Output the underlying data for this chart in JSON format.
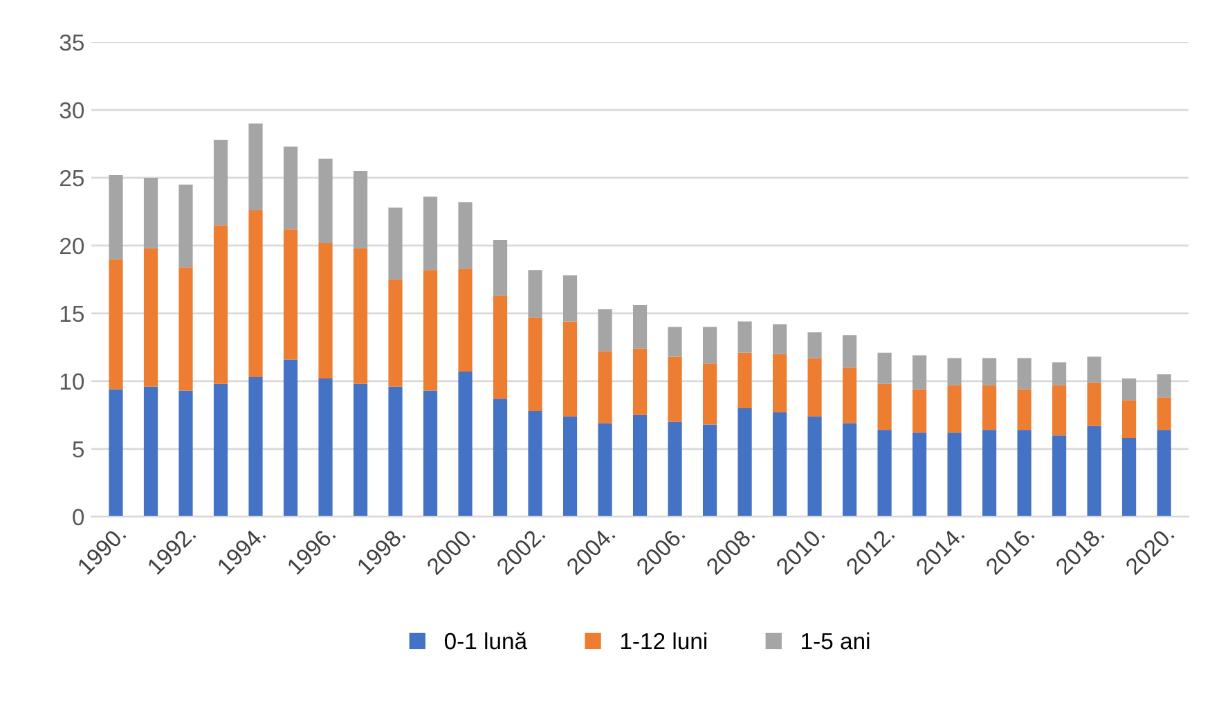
{
  "chart_data": {
    "type": "bar",
    "stacked": true,
    "categories": [
      "1990.",
      null,
      "1992.",
      null,
      "1994.",
      null,
      "1996.",
      null,
      "1998.",
      null,
      "2000.",
      null,
      "2002.",
      null,
      "2004.",
      null,
      "2006.",
      null,
      "2008.",
      null,
      "2010.",
      null,
      "2012.",
      null,
      "2014.",
      null,
      "2016.",
      null,
      "2018.",
      null,
      "2020."
    ],
    "series": [
      {
        "name": "0-1 lună",
        "color": "#4472c4",
        "values": [
          9.4,
          9.6,
          9.3,
          9.8,
          10.3,
          11.6,
          10.2,
          9.8,
          9.6,
          9.3,
          10.7,
          8.7,
          7.8,
          7.4,
          6.9,
          7.5,
          7.0,
          6.8,
          8.0,
          7.7,
          7.4,
          6.9,
          6.4,
          6.2,
          6.2,
          6.4,
          6.4,
          6.0,
          6.7,
          5.8,
          6.4
        ]
      },
      {
        "name": "1-12 luni",
        "color": "#ed7d31",
        "values": [
          9.6,
          10.2,
          9.1,
          11.7,
          12.3,
          9.6,
          10.0,
          10.0,
          7.9,
          8.9,
          7.6,
          7.6,
          6.9,
          7.0,
          5.3,
          4.9,
          4.8,
          4.5,
          4.1,
          4.3,
          4.3,
          4.1,
          3.4,
          3.2,
          3.5,
          3.3,
          3.0,
          3.7,
          3.2,
          2.8,
          2.4
        ]
      },
      {
        "name": "1-5 ani",
        "color": "#a5a5a5",
        "values": [
          6.2,
          5.2,
          6.1,
          6.3,
          6.4,
          6.1,
          6.2,
          5.7,
          5.3,
          5.4,
          4.9,
          4.1,
          3.5,
          3.4,
          3.1,
          3.2,
          2.2,
          2.7,
          2.3,
          2.2,
          1.9,
          2.4,
          2.3,
          2.5,
          2.0,
          2.0,
          2.3,
          1.7,
          1.9,
          1.6,
          1.7
        ]
      }
    ],
    "ylim": [
      0,
      35
    ],
    "yticks": [
      0,
      5,
      10,
      15,
      20,
      25,
      30,
      35
    ],
    "grid": "y",
    "legend": "bottom"
  }
}
